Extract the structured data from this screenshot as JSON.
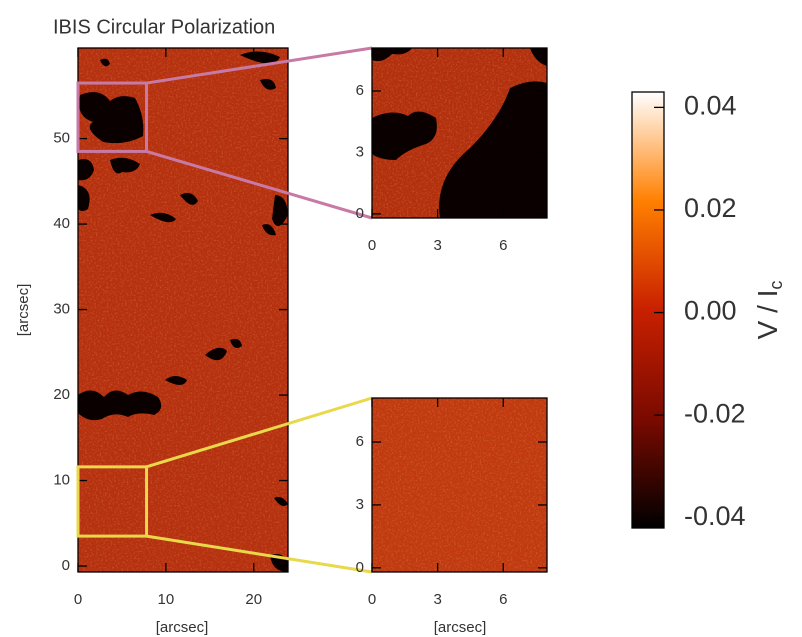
{
  "chart_data": [
    {
      "type": "image",
      "title": "IBIS Circular Polarization",
      "xlabel": "[arcsec]",
      "ylabel": "[arcsec]",
      "color": "#b5300e",
      "xlim": [
        0,
        23.9
      ],
      "ylim": [
        -0.7,
        60.6
      ],
      "xticks": [
        0,
        10,
        20
      ],
      "yticks": [
        0,
        10,
        20,
        30,
        40,
        50
      ],
      "zooms": [
        {
          "color": "#c87aa6",
          "xlim": [
            0,
            7.8
          ],
          "ylim": [
            48.5,
            56.5
          ]
        },
        {
          "color": "#e8d84a",
          "xlim": [
            0,
            7.8
          ],
          "ylim": [
            3.5,
            11.6
          ]
        }
      ]
    },
    {
      "type": "image",
      "color": "#b22f0d",
      "xlim": [
        0,
        8
      ],
      "ylim": [
        -0.2,
        8.1
      ],
      "xticks": [
        0,
        3,
        6
      ],
      "yticks": [
        0,
        3,
        6
      ]
    },
    {
      "type": "image",
      "xlabel": "[arcsec]",
      "color": "#c0390f",
      "xlim": [
        0,
        8
      ],
      "ylim": [
        -0.2,
        8.1
      ],
      "xticks": [
        0,
        3,
        6
      ],
      "yticks": [
        0,
        3,
        6
      ]
    },
    {
      "type": "colorbar",
      "label": "V / I",
      "label_subscript": "c",
      "colors": [
        "#000000",
        "#7a0a00",
        "#c82000",
        "#ff8000",
        "#ffffff"
      ],
      "ylim": [
        -0.042,
        0.043
      ],
      "yticks": [
        {
          "value": -0.04,
          "label": "-0.04"
        },
        {
          "value": -0.02,
          "label": "-0.02"
        },
        {
          "value": 0,
          "label": "0.00"
        },
        {
          "value": 0.02,
          "label": "0.02"
        },
        {
          "value": 0.04,
          "label": "0.04"
        }
      ]
    }
  ]
}
